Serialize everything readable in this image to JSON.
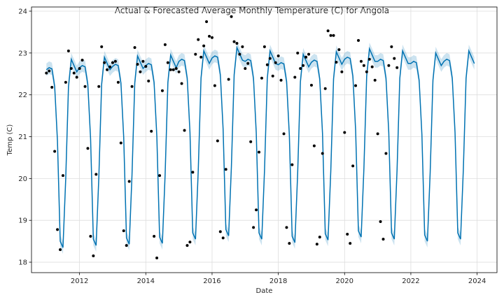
{
  "chart_data": {
    "type": "line",
    "title": "Actual & Forecasted Average Monthly Temperature (C) for Angola",
    "xlabel": "Date",
    "ylabel": "Temp (C)",
    "xlim": [
      2010.55,
      2024.6
    ],
    "ylim": [
      17.75,
      24.1
    ],
    "x_ticks": [
      2012,
      2014,
      2016,
      2018,
      2020,
      2022,
      2024
    ],
    "y_ticks": [
      18,
      19,
      20,
      21,
      22,
      23,
      24
    ],
    "grid": true,
    "colors": {
      "forecast_line": "#0072B2",
      "interval_band": "#0072B2",
      "actual_points": "#000000",
      "grid": "#dddddd"
    },
    "seasonal_pattern_month_values": [
      22.7,
      22.75,
      22.72,
      22.3,
      21.0,
      18.6,
      18.45,
      20.1,
      22.3,
      22.95,
      22.8,
      22.65
    ],
    "yearly_offsets": {
      "2011": -0.1,
      "2012": -0.05,
      "2013": -0.02,
      "2014": 0.0,
      "2015": 0.1,
      "2016": 0.18,
      "2017": 0.1,
      "2018": 0.02,
      "2019": 0.08,
      "2020": 0.15,
      "2021": 0.1,
      "2022": 0.05,
      "2023": 0.1
    },
    "forecast_start": 2011.0,
    "forecast_end": 2023.917,
    "interval_half_width": 0.15,
    "series": [
      {
        "name": "Actual",
        "points": [
          [
            2011.0,
            22.52
          ],
          [
            2011.083,
            22.57
          ],
          [
            2011.167,
            22.18
          ],
          [
            2011.25,
            20.65
          ],
          [
            2011.333,
            18.78
          ],
          [
            2011.417,
            18.3
          ],
          [
            2011.5,
            20.07
          ],
          [
            2011.583,
            22.3
          ],
          [
            2011.667,
            23.05
          ],
          [
            2011.75,
            22.63
          ],
          [
            2011.833,
            22.52
          ],
          [
            2011.917,
            22.42
          ],
          [
            2012.0,
            22.63
          ],
          [
            2012.083,
            22.83
          ],
          [
            2012.167,
            22.2
          ],
          [
            2012.25,
            20.72
          ],
          [
            2012.333,
            18.62
          ],
          [
            2012.417,
            18.15
          ],
          [
            2012.5,
            20.1
          ],
          [
            2012.583,
            22.2
          ],
          [
            2012.667,
            23.15
          ],
          [
            2012.75,
            22.77
          ],
          [
            2012.833,
            22.6
          ],
          [
            2012.917,
            22.67
          ],
          [
            2013.0,
            22.77
          ],
          [
            2013.083,
            22.8
          ],
          [
            2013.167,
            22.3
          ],
          [
            2013.25,
            20.85
          ],
          [
            2013.333,
            18.75
          ],
          [
            2013.417,
            18.4
          ],
          [
            2013.5,
            19.93
          ],
          [
            2013.583,
            22.2
          ],
          [
            2013.667,
            23.13
          ],
          [
            2013.75,
            22.73
          ],
          [
            2013.833,
            22.55
          ],
          [
            2013.917,
            22.8
          ],
          [
            2014.0,
            22.68
          ],
          [
            2014.083,
            22.33
          ],
          [
            2014.167,
            21.13
          ],
          [
            2014.25,
            18.62
          ],
          [
            2014.333,
            18.1
          ],
          [
            2014.417,
            20.07
          ],
          [
            2014.5,
            22.1
          ],
          [
            2014.583,
            23.2
          ],
          [
            2014.667,
            22.77
          ],
          [
            2014.75,
            22.6
          ],
          [
            2014.833,
            22.6
          ],
          [
            2014.917,
            22.63
          ],
          [
            2015.0,
            22.55
          ],
          [
            2015.083,
            22.27
          ],
          [
            2015.167,
            21.15
          ],
          [
            2015.25,
            18.4
          ],
          [
            2015.333,
            18.48
          ],
          [
            2015.417,
            20.15
          ],
          [
            2015.5,
            22.97
          ],
          [
            2015.583,
            23.32
          ],
          [
            2015.667,
            22.9
          ],
          [
            2015.75,
            23.17
          ],
          [
            2015.833,
            23.75
          ],
          [
            2015.917,
            23.4
          ],
          [
            2016.0,
            23.37
          ],
          [
            2016.083,
            22.22
          ],
          [
            2016.167,
            20.9
          ],
          [
            2016.25,
            18.73
          ],
          [
            2016.333,
            18.58
          ],
          [
            2016.417,
            20.22
          ],
          [
            2016.5,
            22.37
          ],
          [
            2016.583,
            23.87
          ],
          [
            2016.667,
            23.27
          ],
          [
            2016.75,
            23.23
          ],
          [
            2016.833,
            22.97
          ],
          [
            2016.917,
            23.15
          ],
          [
            2017.0,
            22.63
          ],
          [
            2017.083,
            22.75
          ],
          [
            2017.167,
            20.88
          ],
          [
            2017.25,
            18.83
          ],
          [
            2017.333,
            19.25
          ],
          [
            2017.417,
            20.63
          ],
          [
            2017.5,
            22.4
          ],
          [
            2017.583,
            23.15
          ],
          [
            2017.667,
            22.72
          ],
          [
            2017.75,
            22.87
          ],
          [
            2017.833,
            22.45
          ],
          [
            2017.917,
            22.77
          ],
          [
            2018.0,
            22.93
          ],
          [
            2018.083,
            22.35
          ],
          [
            2018.167,
            21.07
          ],
          [
            2018.25,
            18.83
          ],
          [
            2018.333,
            18.45
          ],
          [
            2018.417,
            20.33
          ],
          [
            2018.5,
            22.42
          ],
          [
            2018.583,
            23.0
          ],
          [
            2018.667,
            22.63
          ],
          [
            2018.75,
            22.7
          ],
          [
            2018.833,
            22.9
          ],
          [
            2018.917,
            22.97
          ],
          [
            2019.0,
            22.23
          ],
          [
            2019.083,
            20.78
          ],
          [
            2019.167,
            18.43
          ],
          [
            2019.25,
            18.6
          ],
          [
            2019.333,
            20.6
          ],
          [
            2019.417,
            22.15
          ],
          [
            2019.5,
            23.53
          ],
          [
            2019.583,
            23.42
          ],
          [
            2019.667,
            23.42
          ],
          [
            2019.75,
            22.78
          ],
          [
            2019.833,
            23.08
          ],
          [
            2019.917,
            22.55
          ],
          [
            2020.0,
            21.1
          ],
          [
            2020.083,
            18.67
          ],
          [
            2020.167,
            18.45
          ],
          [
            2020.25,
            20.3
          ],
          [
            2020.333,
            22.22
          ],
          [
            2020.417,
            23.3
          ],
          [
            2020.5,
            22.8
          ],
          [
            2020.583,
            22.7
          ],
          [
            2020.667,
            22.55
          ],
          [
            2020.75,
            22.85
          ],
          [
            2020.833,
            22.67
          ],
          [
            2020.917,
            22.35
          ],
          [
            2021.0,
            21.07
          ],
          [
            2021.083,
            18.97
          ],
          [
            2021.167,
            18.55
          ],
          [
            2021.25,
            20.6
          ],
          [
            2021.333,
            22.7
          ],
          [
            2021.417,
            23.15
          ],
          [
            2021.5,
            22.87
          ],
          [
            2021.583,
            22.65
          ]
        ]
      },
      {
        "name": "Forecast",
        "values_from_pattern": true
      }
    ]
  }
}
